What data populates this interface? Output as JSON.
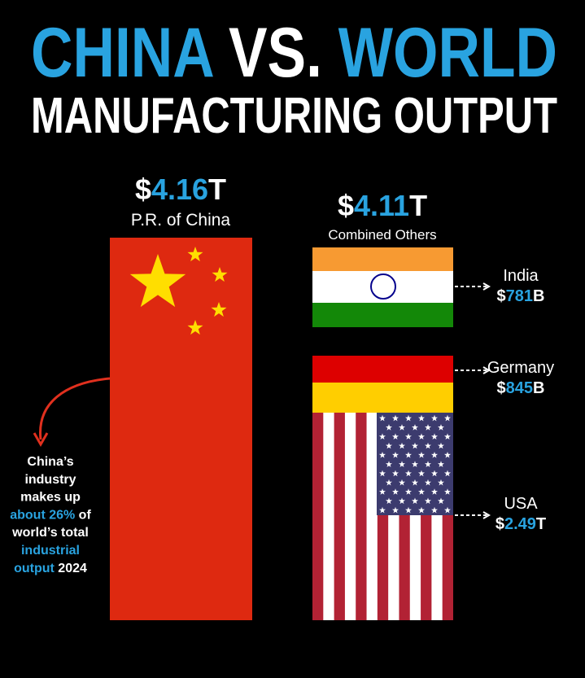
{
  "title": {
    "line1": [
      "CHINA",
      "VS.",
      "WORLD"
    ],
    "line2": "MANUFACTURING OUTPUT"
  },
  "china": {
    "value": {
      "currency": "$",
      "amount": "4.16",
      "unit": "T"
    },
    "label": "P.R. of China"
  },
  "others": {
    "value": {
      "currency": "$",
      "amount": "4.11",
      "unit": "T"
    },
    "label": "Combined Others"
  },
  "countries": [
    {
      "name": "India",
      "value": {
        "currency": "$",
        "amount": "781",
        "unit": "B"
      }
    },
    {
      "name": "Germany",
      "value": {
        "currency": "$",
        "amount": "845",
        "unit": "B"
      }
    },
    {
      "name": "USA",
      "value": {
        "currency": "$",
        "amount": "2.49",
        "unit": "T"
      }
    }
  ],
  "note": {
    "lines": [
      [
        {
          "text": "China’s",
          "highlight": false
        }
      ],
      [
        {
          "text": "industry",
          "highlight": false
        }
      ],
      [
        {
          "text": "makes up",
          "highlight": false
        }
      ],
      [
        {
          "text": "about 26%",
          "highlight": true
        },
        {
          "text": " of",
          "highlight": false
        }
      ],
      [
        {
          "text": "world’s total",
          "highlight": false
        }
      ],
      [
        {
          "text": "industrial",
          "highlight": true
        }
      ],
      [
        {
          "text": "output",
          "highlight": true
        },
        {
          "text": " 2024",
          "highlight": false
        }
      ]
    ]
  }
}
